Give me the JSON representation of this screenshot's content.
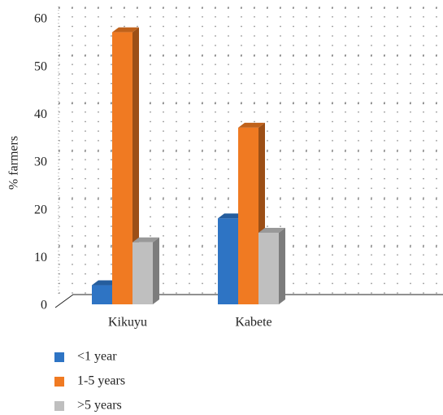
{
  "chart_data": {
    "type": "bar3d",
    "y_label": "% farmers",
    "categories": [
      "Kikuyu",
      "Kabete"
    ],
    "series": [
      {
        "name": "<1 year",
        "color": "#2e74c4",
        "values": [
          4,
          18
        ]
      },
      {
        "name": "1-5 years",
        "color": "#f07a22",
        "values": [
          57,
          37
        ]
      },
      {
        "name": ">5 years",
        "color": "#bfbfbf",
        "values": [
          13,
          15
        ]
      }
    ],
    "ylim": [
      0,
      60
    ],
    "yticks": [
      0,
      10,
      20,
      30,
      40,
      50,
      60
    ],
    "grid": true,
    "legend": "bottom-left"
  }
}
